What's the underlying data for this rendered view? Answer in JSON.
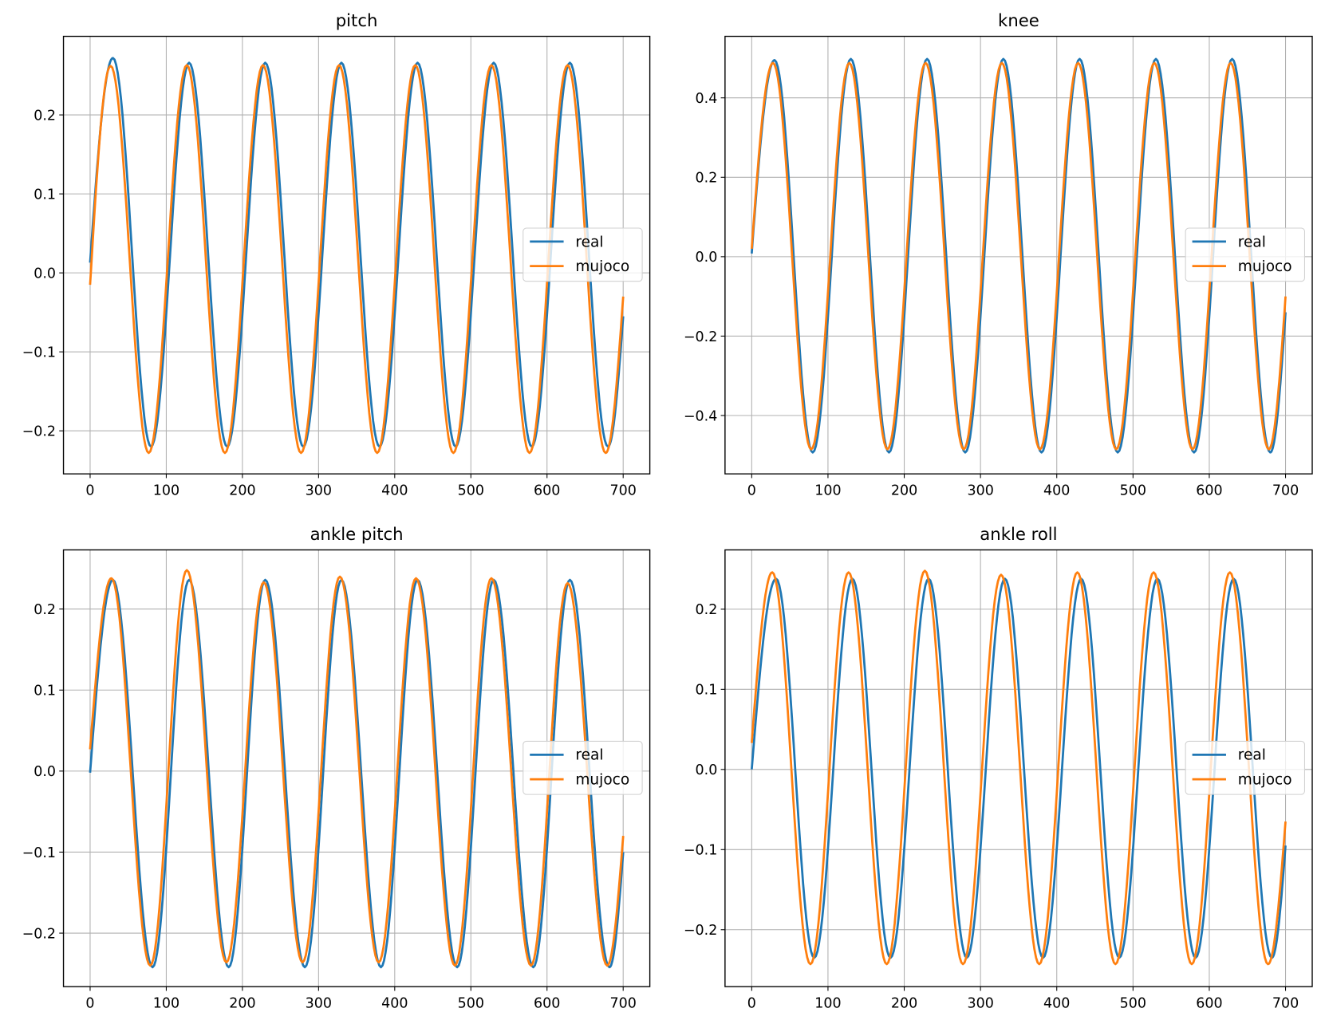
{
  "chart_data": [
    {
      "type": "line",
      "title": "pitch",
      "xlim": [
        -35,
        735
      ],
      "ylim": [
        -0.2545,
        0.2995
      ],
      "xticks": [
        0,
        100,
        200,
        300,
        400,
        500,
        600,
        700
      ],
      "yticks": [
        -0.2,
        -0.1,
        0.0,
        0.1,
        0.2
      ],
      "ytick_labels": [
        "−0.2",
        "−0.1",
        "0.0",
        "0.1",
        "0.2"
      ],
      "grid": true,
      "legend": "center-right",
      "series": [
        {
          "name": "real",
          "color": "#1f77b4",
          "x": [
            0,
            30,
            80,
            130,
            180,
            230,
            280,
            330,
            380,
            430,
            480,
            530,
            580,
            630,
            680,
            700
          ],
          "y": [
            0.013,
            0.272,
            -0.22,
            0.266,
            -0.22,
            0.266,
            -0.22,
            0.266,
            -0.22,
            0.266,
            -0.22,
            0.266,
            -0.22,
            0.266,
            -0.22,
            -0.055
          ]
        },
        {
          "name": "mujoco",
          "color": "#ff7f0e",
          "x": [
            0,
            27,
            77,
            127,
            177,
            227,
            277,
            327,
            377,
            427,
            477,
            527,
            577,
            627,
            677,
            700
          ],
          "y": [
            -0.015,
            0.262,
            -0.228,
            0.263,
            -0.228,
            0.263,
            -0.228,
            0.263,
            -0.228,
            0.263,
            -0.228,
            0.263,
            -0.228,
            0.263,
            -0.228,
            -0.03
          ]
        }
      ]
    },
    {
      "type": "line",
      "title": "knee",
      "xlim": [
        -35,
        735
      ],
      "ylim": [
        -0.547,
        0.555
      ],
      "xticks": [
        0,
        100,
        200,
        300,
        400,
        500,
        600,
        700
      ],
      "yticks": [
        -0.4,
        -0.2,
        0.0,
        0.2,
        0.4
      ],
      "ytick_labels": [
        "−0.4",
        "−0.2",
        "0.0",
        "0.2",
        "0.4"
      ],
      "grid": true,
      "legend": "center-right",
      "series": [
        {
          "name": "real",
          "color": "#1f77b4",
          "x": [
            0,
            30,
            80,
            130,
            180,
            230,
            280,
            330,
            380,
            430,
            480,
            530,
            580,
            630,
            680,
            700
          ],
          "y": [
            0.008,
            0.495,
            -0.493,
            0.498,
            -0.493,
            0.498,
            -0.493,
            0.498,
            -0.493,
            0.498,
            -0.493,
            0.498,
            -0.493,
            0.498,
            -0.493,
            -0.14
          ]
        },
        {
          "name": "mujoco",
          "color": "#ff7f0e",
          "x": [
            0,
            28,
            78,
            128,
            178,
            228,
            278,
            328,
            378,
            428,
            478,
            528,
            578,
            628,
            678,
            700
          ],
          "y": [
            0.02,
            0.488,
            -0.485,
            0.488,
            -0.485,
            0.488,
            -0.485,
            0.488,
            -0.485,
            0.488,
            -0.485,
            0.488,
            -0.485,
            0.488,
            -0.485,
            -0.1
          ]
        }
      ]
    },
    {
      "type": "line",
      "title": "ankle pitch",
      "xlim": [
        -35,
        735
      ],
      "ylim": [
        -0.266,
        0.273
      ],
      "xticks": [
        0,
        100,
        200,
        300,
        400,
        500,
        600,
        700
      ],
      "yticks": [
        -0.2,
        -0.1,
        0.0,
        0.1,
        0.2
      ],
      "ytick_labels": [
        "−0.2",
        "−0.1",
        "0.0",
        "0.1",
        "0.2"
      ],
      "grid": true,
      "legend": "center-right",
      "series": [
        {
          "name": "real",
          "color": "#1f77b4",
          "x": [
            0,
            30,
            82,
            130,
            182,
            230,
            282,
            330,
            382,
            430,
            482,
            530,
            582,
            630,
            682,
            700
          ],
          "y": [
            -0.002,
            0.236,
            -0.242,
            0.236,
            -0.242,
            0.236,
            -0.242,
            0.236,
            -0.242,
            0.236,
            -0.242,
            0.236,
            -0.242,
            0.236,
            -0.242,
            -0.1
          ]
        },
        {
          "name": "mujoco",
          "color": "#ff7f0e",
          "x": [
            0,
            28,
            79,
            127,
            179,
            228,
            279,
            328,
            379,
            428,
            479,
            527,
            579,
            627,
            679,
            700
          ],
          "y": [
            0.027,
            0.238,
            -0.24,
            0.248,
            -0.236,
            0.233,
            -0.236,
            0.24,
            -0.236,
            0.238,
            -0.24,
            0.238,
            -0.24,
            0.232,
            -0.24,
            -0.08
          ]
        }
      ]
    },
    {
      "type": "line",
      "title": "ankle roll",
      "xlim": [
        -35,
        735
      ],
      "ylim": [
        -0.271,
        0.274
      ],
      "xticks": [
        0,
        100,
        200,
        300,
        400,
        500,
        600,
        700
      ],
      "yticks": [
        -0.2,
        -0.1,
        0.0,
        0.1,
        0.2
      ],
      "ytick_labels": [
        "−0.2",
        "−0.1",
        "0.0",
        "0.1",
        "0.2"
      ],
      "grid": true,
      "legend": "center-right",
      "series": [
        {
          "name": "real",
          "color": "#1f77b4",
          "x": [
            0,
            32,
            82,
            132,
            182,
            232,
            282,
            332,
            382,
            432,
            482,
            532,
            582,
            632,
            682,
            700
          ],
          "y": [
            0.0,
            0.238,
            -0.235,
            0.238,
            -0.235,
            0.238,
            -0.235,
            0.238,
            -0.235,
            0.238,
            -0.235,
            0.238,
            -0.235,
            0.238,
            -0.235,
            -0.095
          ]
        },
        {
          "name": "mujoco",
          "color": "#ff7f0e",
          "x": [
            0,
            27,
            77,
            127,
            177,
            227,
            277,
            327,
            377,
            427,
            477,
            527,
            577,
            627,
            677,
            700
          ],
          "y": [
            0.033,
            0.246,
            -0.243,
            0.246,
            -0.243,
            0.248,
            -0.243,
            0.243,
            -0.243,
            0.246,
            -0.243,
            0.246,
            -0.243,
            0.246,
            -0.243,
            -0.065
          ]
        }
      ]
    }
  ]
}
